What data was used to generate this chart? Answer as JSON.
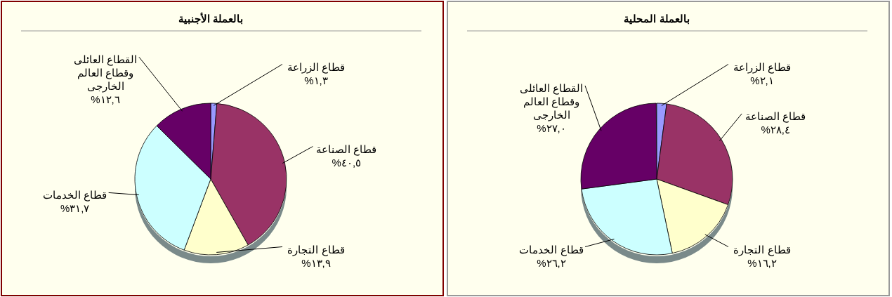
{
  "chart_data": [
    {
      "type": "pie",
      "title": "بالعملة الأجنبية",
      "categories": [
        "قطاع الزراعة",
        "قطاع الصناعة",
        "قطاع التجارة",
        "قطاع الخدمات",
        "القطاع العائلى وقطاع العالم الخارجى"
      ],
      "values": [
        1.3,
        40.5,
        13.9,
        31.7,
        12.6
      ],
      "value_labels": [
        "١,٣%",
        "٤٠,٥%",
        "١٣,٩%",
        "٣١,٧%",
        "١٢,٦%"
      ],
      "colors": [
        "#9999ff",
        "#993366",
        "#ffffcc",
        "#ccffff",
        "#660066"
      ]
    },
    {
      "type": "pie",
      "title": "بالعملة المحلية",
      "categories": [
        "قطاع الزراعة",
        "قطاع الصناعة",
        "قطاع التجارة",
        "قطاع الخدمات",
        "القطاع العائلى وقطاع العالم الخارجى"
      ],
      "values": [
        2.1,
        28.4,
        16.2,
        26.2,
        27.0
      ],
      "value_labels": [
        "٢,١%",
        "٢٨,٤%",
        "١٦,٢%",
        "٢٦,٢%",
        "٢٧,٠%"
      ],
      "colors": [
        "#9999ff",
        "#993366",
        "#ffffcc",
        "#ccffff",
        "#660066"
      ]
    }
  ]
}
